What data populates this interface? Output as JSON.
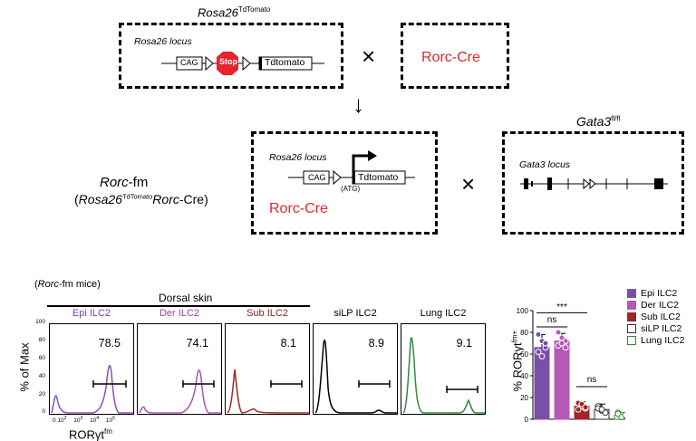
{
  "top": {
    "rosa_title_main": "Rosa26",
    "rosa_title_sup": "TdTomato",
    "rosa_locus": "Rosa26 locus",
    "cag": "CAG",
    "stop": "Stop",
    "tdtomato": "Tdtomato",
    "times": "×",
    "rorc_cre_box": "Rorc-Cre",
    "arrow": "↓",
    "rorc_fm_title": "Rorc-fm",
    "rorc_fm_paren_open": "(",
    "rorc_fm_rosa": "Rosa26",
    "rorc_fm_sup": "TdTomato",
    "rorc_fm_rorc": "Rorc",
    "rorc_fm_tail": "-Cre)",
    "atg": "(ATG)",
    "rorc_cre_mid": "Rorc-Cre",
    "gata3_title": "Gata3",
    "gata3_sup": "fl/fl",
    "gata3_locus": "Gata3 locus"
  },
  "bottom": {
    "mice_label_open": "(",
    "mice_label_it": "Rorc",
    "mice_label_rest": "-fm mice)",
    "dorsal_skin": "Dorsal skin",
    "y_axis": "% of Max",
    "x_axis": "RORγt",
    "x_axis_sup": "fm",
    "y_ticks": [
      "100",
      "80",
      "60",
      "40",
      "20",
      "0"
    ],
    "x_ticks": [
      "0",
      "10",
      "2",
      "10",
      "3",
      "10",
      "4",
      "10",
      "5"
    ],
    "panels": [
      {
        "title": "Epi ILC2",
        "value": "78.5",
        "color": "#8b4fb0",
        "title_color": "#7b3fa0"
      },
      {
        "title": "Der ILC2",
        "value": "74.1",
        "color": "#b44fb4",
        "title_color": "#a03fa0"
      },
      {
        "title": "Sub ILC2",
        "value": "8.1",
        "color": "#9b2a2a",
        "title_color": "#8b1a1a"
      },
      {
        "title": "siLP ILC2",
        "value": "8.9",
        "color": "#000000",
        "title_color": "#000000"
      },
      {
        "title": "Lung ILC2",
        "value": "9.1",
        "color": "#2e8b3e",
        "title_color": "#000000"
      }
    ]
  },
  "chart_data": {
    "type": "bar",
    "ylabel": "% RORγt",
    "ylabel_sup": "fm+",
    "ylim": [
      0,
      100
    ],
    "yticks": [
      "0",
      "20",
      "40",
      "60",
      "80",
      "100"
    ],
    "categories": [
      "Epi ILC2",
      "Der ILC2",
      "Sub ILC2",
      "siLP ILC2",
      "Lung ILC2"
    ],
    "values": [
      66,
      72,
      12,
      9,
      4
    ],
    "errors": [
      12,
      7,
      4,
      5,
      2
    ],
    "points": [
      [
        78,
        72,
        66,
        62,
        58,
        70
      ],
      [
        80,
        75,
        72,
        68,
        70,
        66
      ],
      [
        15,
        12,
        10,
        9,
        14,
        11
      ],
      [
        12,
        8,
        6,
        10,
        9
      ],
      [
        6,
        4,
        3,
        5,
        2,
        4
      ]
    ],
    "colors": [
      "#7b4fa8",
      "#b459b8",
      "#a3252a",
      "#ffffff",
      "#ffffff"
    ],
    "edge_colors": [
      "#7b4fa8",
      "#b459b8",
      "#a3252a",
      "#333333",
      "#2e8b3e"
    ],
    "annotations": [
      "ns",
      "ns",
      "***"
    ],
    "legend": [
      "Epi ILC2",
      "Der ILC2",
      "Sub ILC2",
      "siLP ILC2",
      "Lung ILC2"
    ],
    "legend_position": "top-right"
  }
}
